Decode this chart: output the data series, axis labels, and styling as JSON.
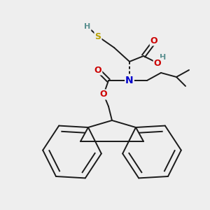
{
  "background_color": "#eeeeee",
  "figsize": [
    3.0,
    3.0
  ],
  "dpi": 100,
  "bond_lw": 1.4,
  "black": "#1a1a1a",
  "colors": {
    "S": "#b8a000",
    "H_thiol": "#5a9090",
    "O": "#cc0000",
    "N": "#0000cc",
    "H_acid": "#5a9090"
  }
}
